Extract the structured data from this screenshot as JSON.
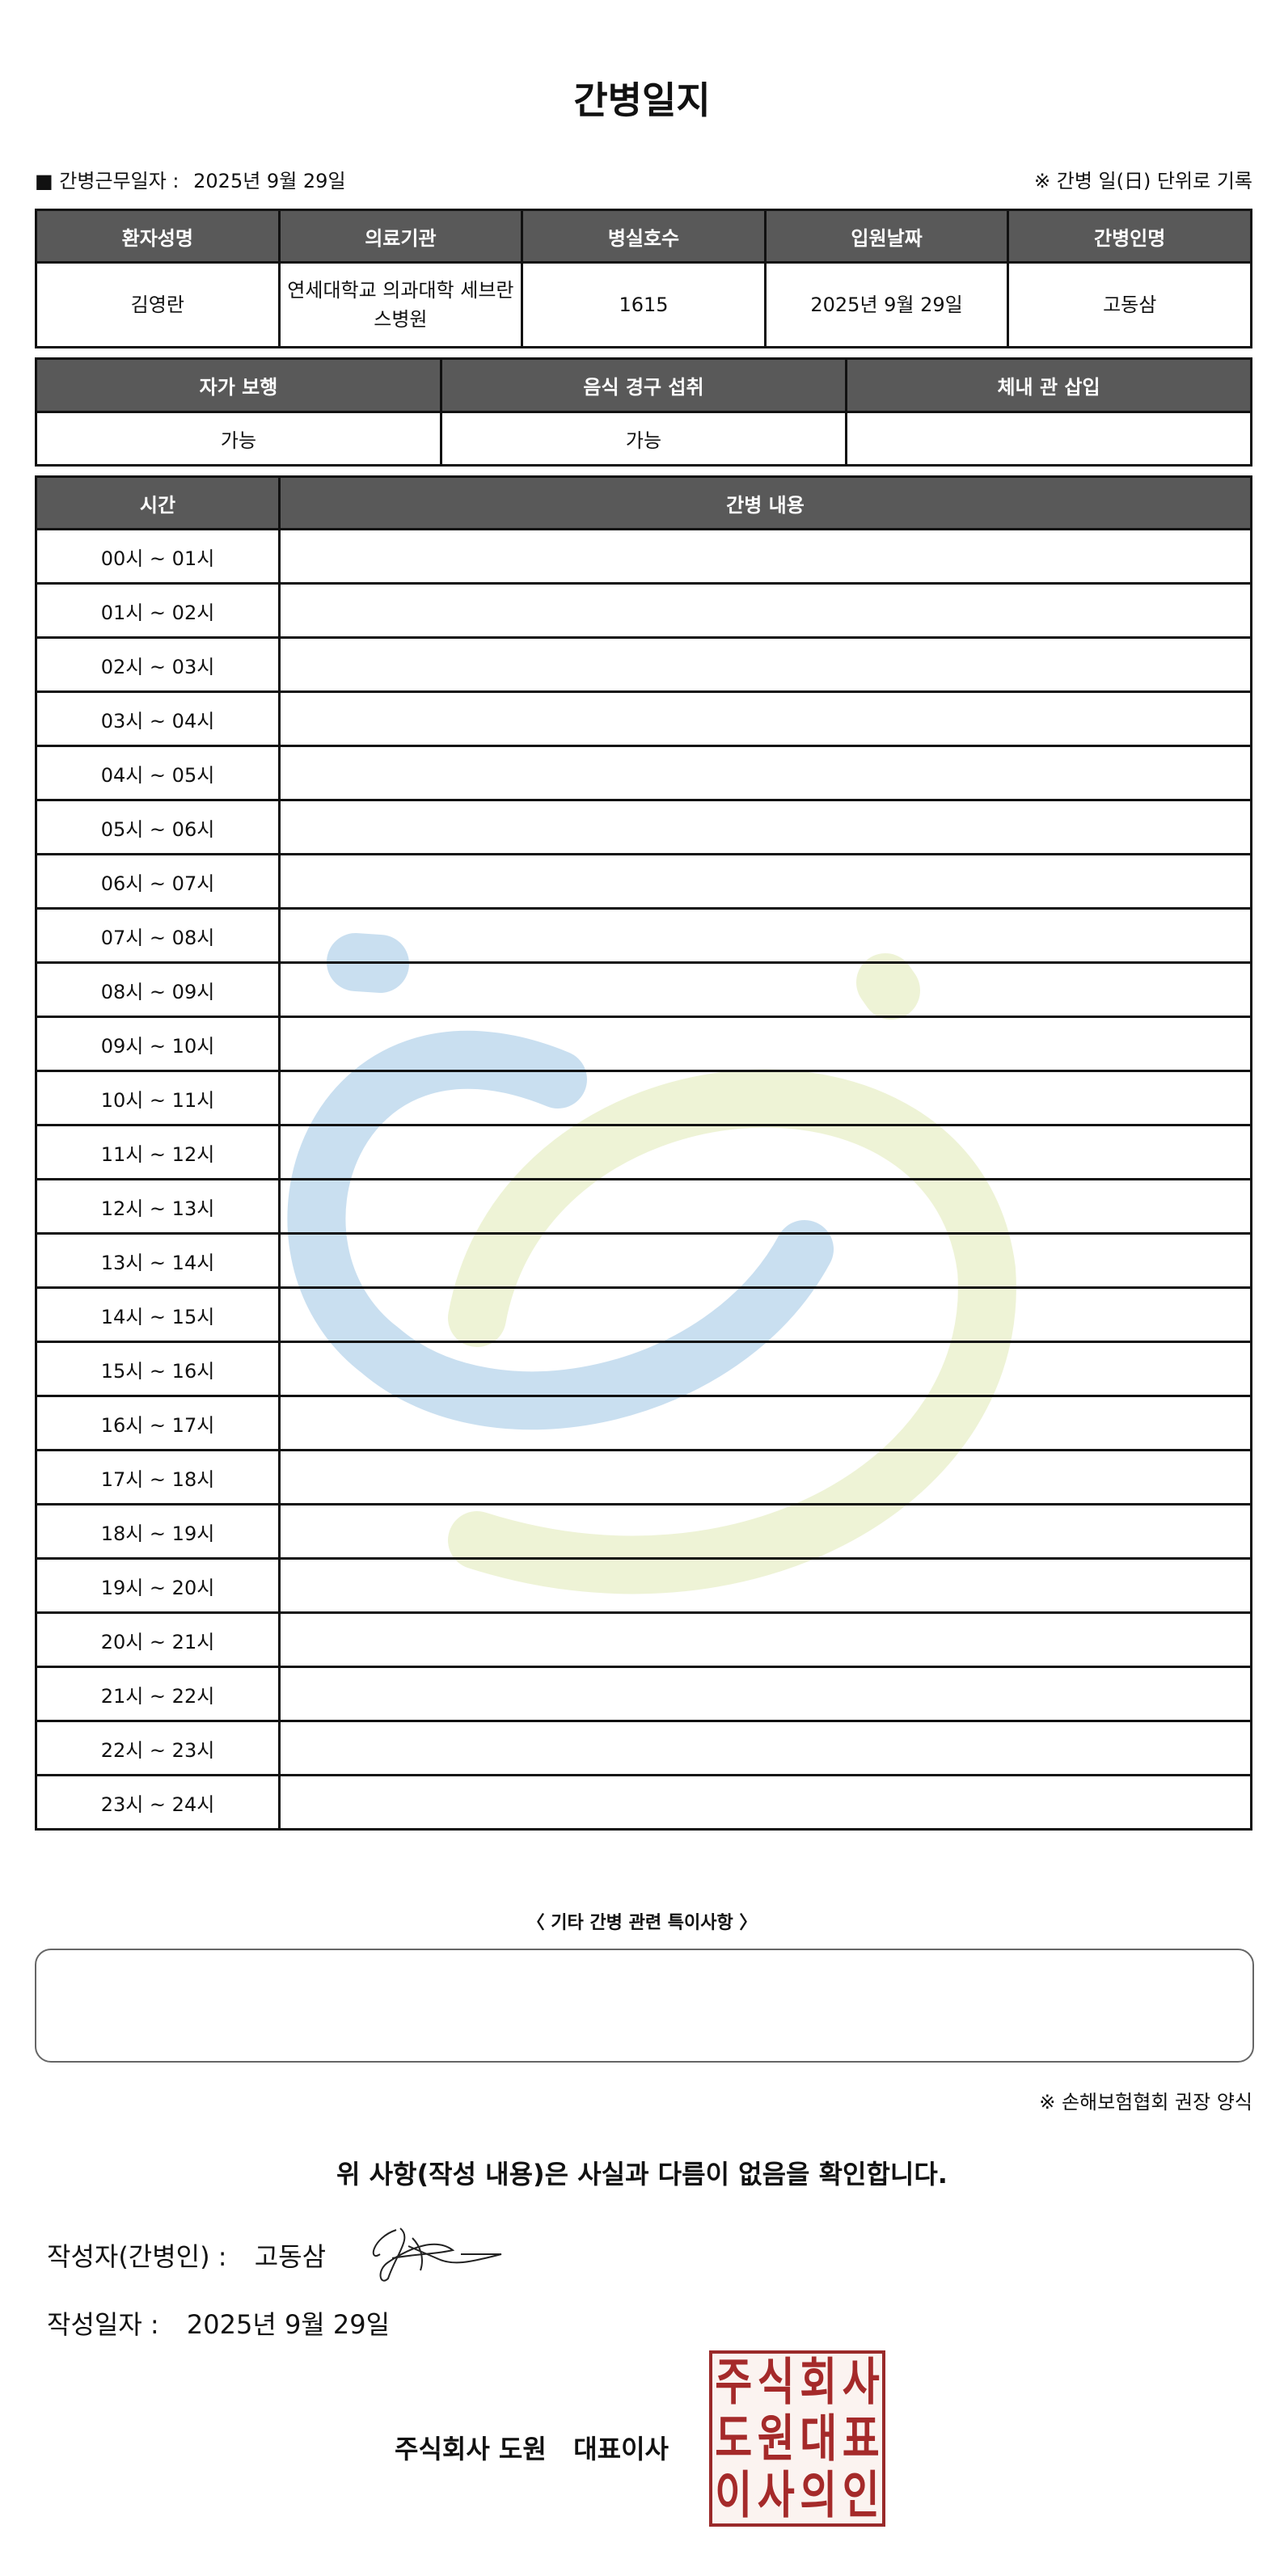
{
  "title": "간병일지",
  "work_date_label": "■ 간병근무일자  :",
  "work_date": "2025년 9월 29일",
  "record_note": "※ 간병 일(日) 단위로 기록",
  "patient_table": {
    "headers": [
      "환자성명",
      "의료기관",
      "병실호수",
      "입원날짜",
      "간병인명"
    ],
    "values": [
      "김영란",
      "연세대학교 의과대학 세브란스병원",
      "1615",
      "2025년 9월 29일",
      "고동삼"
    ]
  },
  "status_table": {
    "headers": [
      "자가 보행",
      "음식 경구 섭취",
      "체내 관 삽입"
    ],
    "values": [
      "가능",
      "가능",
      ""
    ]
  },
  "log_table": {
    "headers": [
      "시간",
      "간병 내용"
    ],
    "rows": [
      {
        "time": "00시 ~ 01시",
        "content": ""
      },
      {
        "time": "01시 ~ 02시",
        "content": ""
      },
      {
        "time": "02시 ~ 03시",
        "content": ""
      },
      {
        "time": "03시 ~ 04시",
        "content": ""
      },
      {
        "time": "04시 ~ 05시",
        "content": ""
      },
      {
        "time": "05시 ~ 06시",
        "content": ""
      },
      {
        "time": "06시 ~ 07시",
        "content": ""
      },
      {
        "time": "07시 ~ 08시",
        "content": ""
      },
      {
        "time": "08시 ~ 09시",
        "content": ""
      },
      {
        "time": "09시 ~ 10시",
        "content": ""
      },
      {
        "time": "10시 ~ 11시",
        "content": ""
      },
      {
        "time": "11시 ~ 12시",
        "content": ""
      },
      {
        "time": "12시 ~ 13시",
        "content": ""
      },
      {
        "time": "13시 ~ 14시",
        "content": ""
      },
      {
        "time": "14시 ~ 15시",
        "content": ""
      },
      {
        "time": "15시 ~ 16시",
        "content": ""
      },
      {
        "time": "16시 ~ 17시",
        "content": ""
      },
      {
        "time": "17시 ~ 18시",
        "content": ""
      },
      {
        "time": "18시 ~ 19시",
        "content": ""
      },
      {
        "time": "19시 ~ 20시",
        "content": ""
      },
      {
        "time": "20시 ~ 21시",
        "content": ""
      },
      {
        "time": "21시 ~ 22시",
        "content": ""
      },
      {
        "time": "22시 ~ 23시",
        "content": ""
      },
      {
        "time": "23시 ~ 24시",
        "content": ""
      }
    ]
  },
  "memo_label": "〈 기타 간병 관련 특이사항 〉",
  "memo": "",
  "form_note": "※ 손해보험협회 권장 양식",
  "confirm_text": "위 사항(작성 내용)은 사실과 다름이 없음을 확인합니다.",
  "writer_label": "작성자(간병인) :",
  "writer_name": "고동삼",
  "written_date_label": "작성일자 :",
  "written_date": "2025년 9월 29일",
  "company": "주식회사 도원   대표이사",
  "seal_text": [
    "주",
    "식",
    "회",
    "사",
    "도",
    "원",
    "대",
    "표",
    "이",
    "사",
    "의",
    "인"
  ],
  "colors": {
    "header_bg": "#595959",
    "seal": "#a52a2a",
    "watermark_blue": "#c9dff0",
    "watermark_green": "#eef3d6"
  }
}
